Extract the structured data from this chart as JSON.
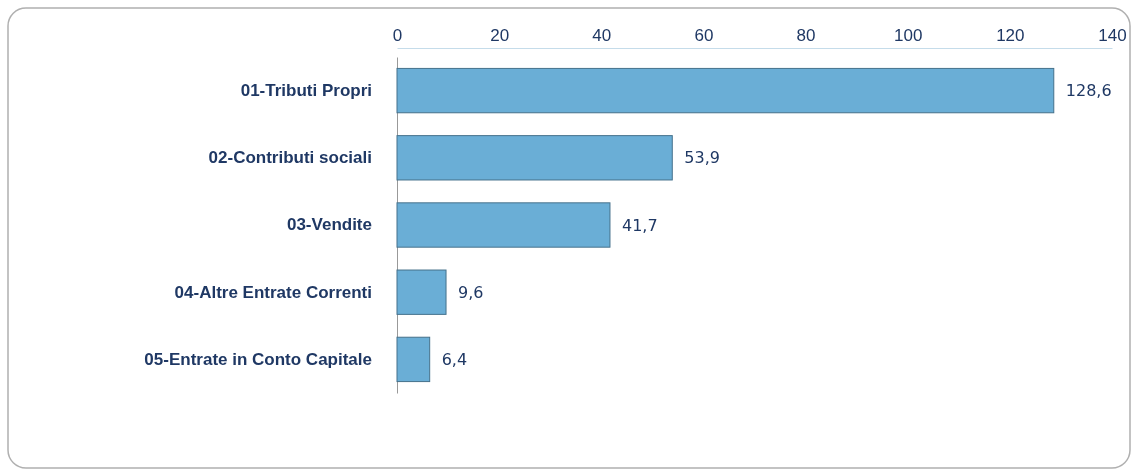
{
  "chart_data": {
    "type": "bar",
    "orientation": "horizontal",
    "categories": [
      "01-Tributi Propri",
      "02-Contributi sociali",
      "03-Vendite",
      "04-Altre Entrate Correnti",
      "05-Entrate in Conto Capitale"
    ],
    "values": [
      128.6,
      53.9,
      41.7,
      9.6,
      6.4
    ],
    "value_labels": [
      "128,6",
      "53,9",
      "41,7",
      "9,6",
      "6,4"
    ],
    "color": "#6aaed6",
    "xlim": [
      0,
      140
    ],
    "xticks": [
      0,
      20,
      40,
      60,
      80,
      100,
      120,
      140
    ],
    "grid": false
  }
}
